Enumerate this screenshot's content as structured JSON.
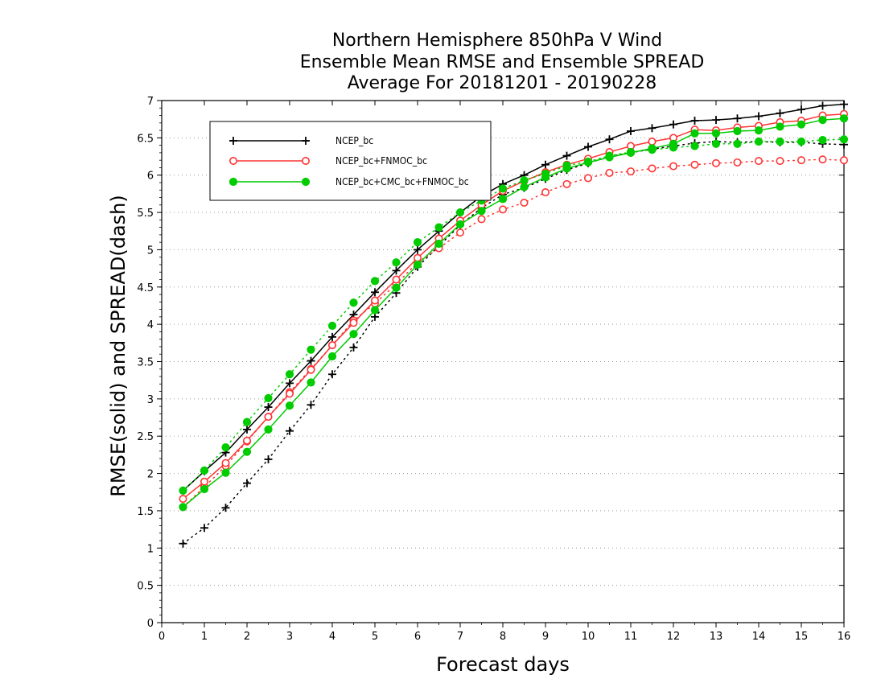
{
  "chart_data": {
    "type": "line",
    "title": [
      "Northern Hemisphere 850hPa V Wind",
      "Ensemble Mean RMSE and Ensemble SPREAD",
      "Average For 20181201 - 20190228"
    ],
    "xlabel": "Forecast days",
    "ylabel": "RMSE(solid) and SPREAD(dash)",
    "xlim": [
      0,
      16
    ],
    "ylim": [
      0,
      7
    ],
    "xticks": [
      "0",
      "1",
      "2",
      "3",
      "4",
      "5",
      "6",
      "7",
      "8",
      "9",
      "10",
      "11",
      "12",
      "13",
      "14",
      "15",
      "16"
    ],
    "yticks": [
      "0",
      "0.5",
      "1",
      "1.5",
      "2",
      "2.5",
      "3",
      "3.5",
      "4",
      "4.5",
      "5",
      "5.5",
      "6",
      "6.5",
      "7"
    ],
    "grid": "horizontal dotted",
    "legend_position": "top-left",
    "x": [
      0.5,
      1,
      1.5,
      2,
      2.5,
      3,
      3.5,
      4,
      4.5,
      5,
      5.5,
      6,
      6.5,
      7,
      7.5,
      8,
      8.5,
      9,
      9.5,
      10,
      10.5,
      11,
      11.5,
      12,
      12.5,
      13,
      13.5,
      14,
      14.5,
      15,
      15.5,
      16
    ],
    "series": [
      {
        "name": "NCEP_bc",
        "color": "#000000",
        "marker": "plus",
        "rmse": [
          1.77,
          2.03,
          2.28,
          2.59,
          2.89,
          3.21,
          3.51,
          3.83,
          4.13,
          4.43,
          4.72,
          5.0,
          5.25,
          5.5,
          5.72,
          5.88,
          6.0,
          6.14,
          6.26,
          6.38,
          6.48,
          6.59,
          6.63,
          6.68,
          6.73,
          6.74,
          6.76,
          6.79,
          6.83,
          6.88,
          6.93,
          6.95
        ],
        "spread": [
          1.06,
          1.27,
          1.54,
          1.87,
          2.19,
          2.57,
          2.92,
          3.33,
          3.69,
          4.1,
          4.42,
          4.77,
          5.05,
          5.33,
          5.56,
          5.74,
          5.83,
          5.95,
          6.07,
          6.16,
          6.25,
          6.3,
          6.35,
          6.39,
          6.43,
          6.45,
          6.44,
          6.45,
          6.44,
          6.44,
          6.42,
          6.41
        ]
      },
      {
        "name": "NCEP_bc+FNMOC_bc",
        "color": "#ff3333",
        "marker": "open-circle",
        "rmse": [
          1.66,
          1.89,
          2.14,
          2.44,
          2.76,
          3.07,
          3.39,
          3.72,
          4.02,
          4.32,
          4.6,
          4.89,
          5.15,
          5.39,
          5.6,
          5.79,
          5.92,
          6.04,
          6.14,
          6.22,
          6.31,
          6.39,
          6.45,
          6.5,
          6.61,
          6.6,
          6.64,
          6.66,
          6.71,
          6.73,
          6.8,
          6.82
        ],
        "spread": [
          1.55,
          1.82,
          2.1,
          2.43,
          2.76,
          3.09,
          3.4,
          3.72,
          4.05,
          4.28,
          4.54,
          4.83,
          5.02,
          5.23,
          5.41,
          5.54,
          5.63,
          5.77,
          5.88,
          5.96,
          6.03,
          6.05,
          6.09,
          6.12,
          6.14,
          6.16,
          6.17,
          6.19,
          6.19,
          6.2,
          6.21,
          6.2
        ]
      },
      {
        "name": "NCEP_bc+CMC_bc+FNMOC_bc",
        "color": "#00cc00",
        "marker": "filled-circle",
        "rmse": [
          1.55,
          1.79,
          2.01,
          2.29,
          2.59,
          2.91,
          3.22,
          3.57,
          3.87,
          4.19,
          4.49,
          4.8,
          5.08,
          5.34,
          5.52,
          5.68,
          5.84,
          5.97,
          6.09,
          6.17,
          6.24,
          6.3,
          6.36,
          6.42,
          6.56,
          6.56,
          6.59,
          6.6,
          6.65,
          6.68,
          6.74,
          6.76
        ],
        "spread": [
          1.77,
          2.04,
          2.35,
          2.69,
          3.01,
          3.33,
          3.66,
          3.98,
          4.29,
          4.58,
          4.83,
          5.1,
          5.3,
          5.5,
          5.66,
          5.82,
          5.93,
          6.02,
          6.13,
          6.18,
          6.26,
          6.31,
          6.34,
          6.37,
          6.39,
          6.42,
          6.42,
          6.45,
          6.45,
          6.45,
          6.47,
          6.48
        ]
      }
    ]
  }
}
